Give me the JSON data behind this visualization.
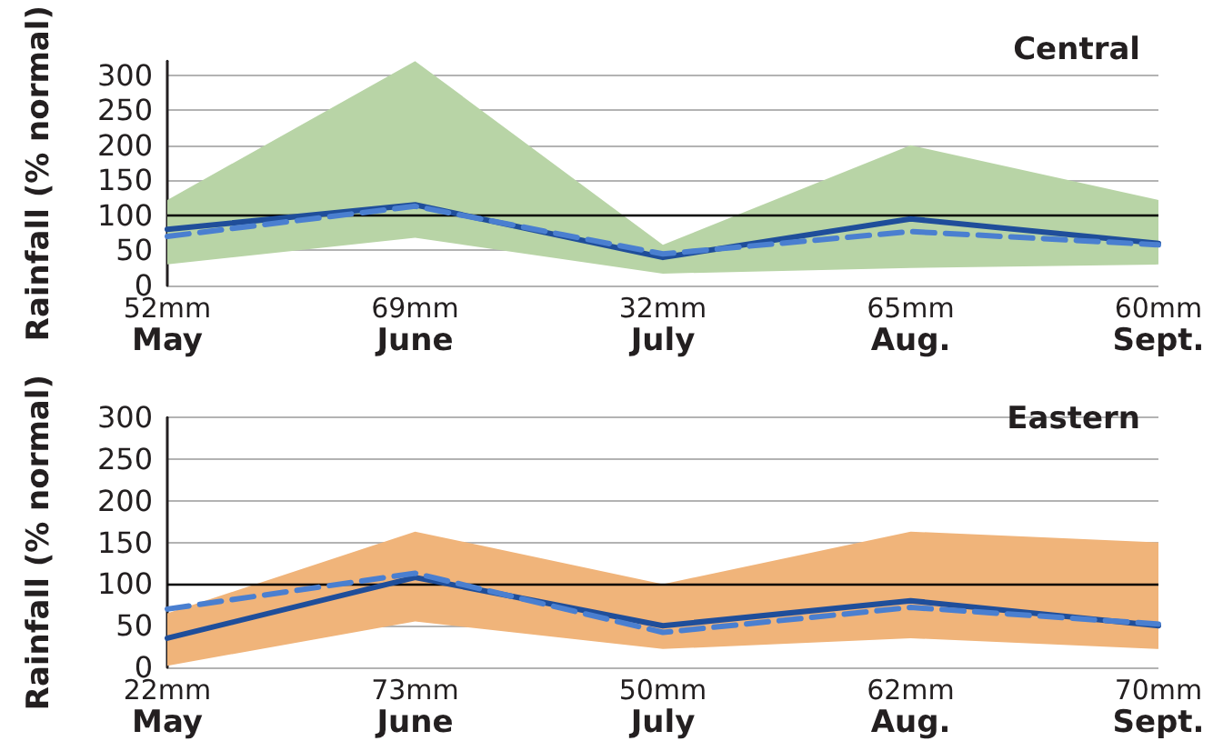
{
  "chart_data": [
    {
      "type": "line",
      "title": "Central",
      "ylabel": "Rainfall (% normal)",
      "categories": [
        "52mm\nMay",
        "69mm\nJune",
        "32mm\nJuly",
        "65mm\nAug.",
        "60mm\nSept."
      ],
      "ylim": [
        0,
        320
      ],
      "yticks": [
        0,
        50,
        100,
        150,
        200,
        250,
        300
      ],
      "grid": "y",
      "marker": "none",
      "series": [
        {
          "color": "#1f4e9a",
          "line_style": "solid",
          "values": [
            80,
            115,
            40,
            95,
            60
          ],
          "lower": [
            30,
            68,
            17,
            25,
            30
          ],
          "upper": [
            122,
            320,
            58,
            200,
            122
          ]
        },
        {
          "color": "#4a7fd0",
          "line_style": "dashed",
          "values": [
            70,
            113,
            45,
            77,
            58
          ]
        }
      ],
      "ref_lines": [
        {
          "axis": "y",
          "value": 100,
          "color": "#000000"
        }
      ]
    },
    {
      "type": "line",
      "title": "Eastern",
      "ylabel": "Rainfall (% normal)",
      "categories": [
        "22mm\nMay",
        "73mm\nJune",
        "50mm\nJuly",
        "62mm\nAug.",
        "70mm\nSept."
      ],
      "ylim": [
        0,
        300
      ],
      "yticks": [
        0,
        50,
        100,
        150,
        200,
        250,
        300
      ],
      "grid": "y",
      "marker": "none",
      "series": [
        {
          "color": "#1f4e9a",
          "line_style": "solid",
          "values": [
            35,
            108,
            50,
            80,
            50
          ],
          "lower": [
            2,
            55,
            22,
            35,
            22
          ],
          "upper": [
            65,
            163,
            100,
            163,
            150
          ]
        },
        {
          "color": "#4a7fd0",
          "line_style": "dashed",
          "values": [
            70,
            113,
            42,
            72,
            52
          ]
        }
      ],
      "ref_lines": [
        {
          "axis": "y",
          "value": 100,
          "color": "#000000"
        }
      ]
    }
  ]
}
